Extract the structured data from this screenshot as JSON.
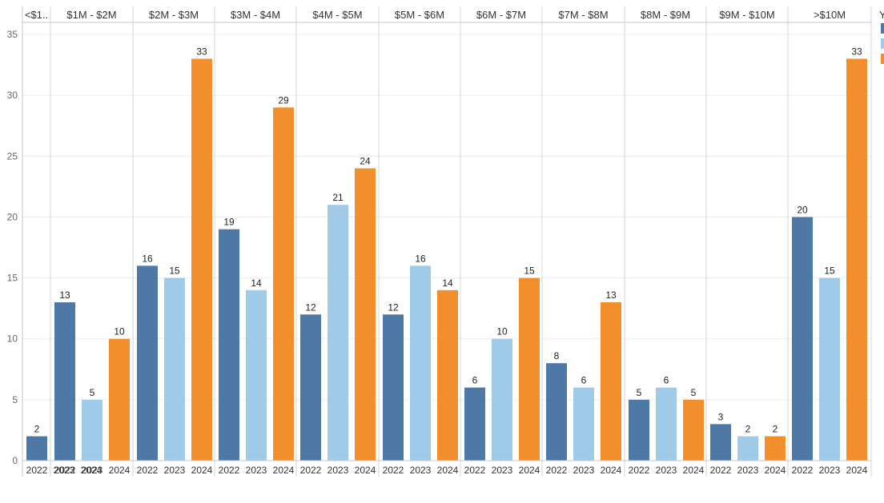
{
  "chart_data": {
    "type": "bar",
    "title": "",
    "xlabel": "",
    "ylabel": "",
    "ylim": [
      0,
      35
    ],
    "yticks": [
      "0",
      "5",
      "10",
      "15",
      "20",
      "25",
      "30",
      "35"
    ],
    "grid": true,
    "categories": [
      "<$1..",
      "$1M - $2M",
      "$2M - $3M",
      "$3M - $4M",
      "$4M - $5M",
      "$5M - $6M",
      "$6M - $7M",
      "$7M - $8M",
      "$8M - $9M",
      "$9M - $10M",
      ">$10M"
    ],
    "legend_title": "Y",
    "series": [
      {
        "name": "2022",
        "color": "#4e79a7",
        "values": [
          2,
          13,
          16,
          19,
          12,
          12,
          6,
          8,
          5,
          3,
          20
        ]
      },
      {
        "name": "2023",
        "color": "#a0cbe8",
        "values": [
          null,
          5,
          15,
          14,
          21,
          16,
          10,
          6,
          6,
          2,
          15
        ]
      },
      {
        "name": "2024",
        "color": "#f28e2b",
        "values": [
          null,
          10,
          33,
          29,
          24,
          14,
          15,
          13,
          5,
          2,
          33
        ]
      }
    ]
  }
}
